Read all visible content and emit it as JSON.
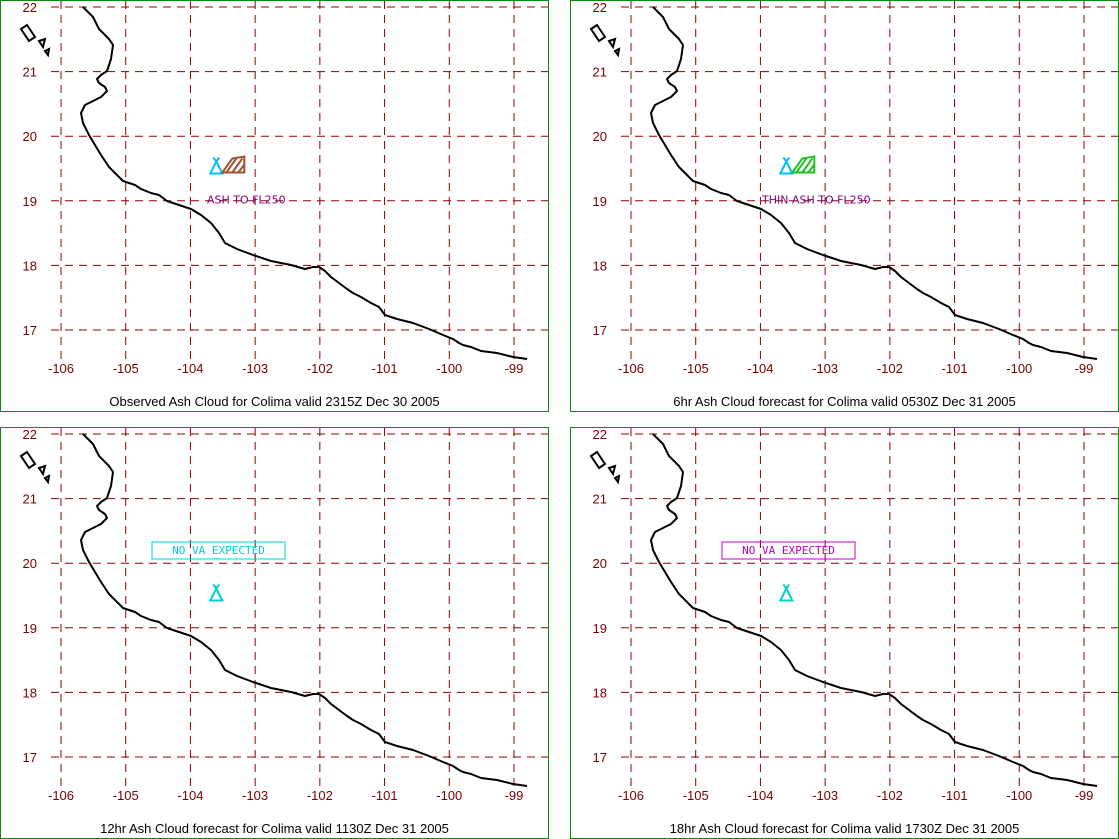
{
  "map": {
    "lon_range": [
      -106,
      -98.7
    ],
    "lat_range": [
      16.5,
      22
    ],
    "lon_ticks": [
      -106,
      -105,
      -104,
      -103,
      -102,
      -101,
      -100,
      -99
    ],
    "lat_ticks": [
      22,
      21,
      20,
      19,
      18,
      17
    ],
    "lon_labels": [
      "-106",
      "-105",
      "-104",
      "-103",
      "-102",
      "-101",
      "-100",
      "-99"
    ],
    "lat_labels": [
      "22",
      "21",
      "20",
      "19",
      "18",
      "17"
    ],
    "volcano": {
      "name": "Colima",
      "lon": -103.6,
      "lat": 19.5
    },
    "colors": {
      "grid": "#8b0000",
      "frame": "#0a8a0a",
      "coast": "#000000"
    }
  },
  "panels": [
    {
      "caption": "Observed Ash Cloud for Colima valid 2315Z Dec 30 2005",
      "ash_label": "ASH TO FL250",
      "ash_color": "#a0522d",
      "volcano_color": "#00bfff",
      "notice": ""
    },
    {
      "caption": "6hr Ash Cloud forecast for Colima valid 0530Z Dec 31 2005",
      "ash_label": "THIN ASH TO FL250",
      "ash_color": "#22c022",
      "volcano_color": "#00bfff",
      "notice": ""
    },
    {
      "caption": "12hr Ash Cloud forecast for Colima valid 1130Z Dec 31 2005",
      "ash_label": "",
      "ash_color": "",
      "volcano_color": "#00d0d0",
      "notice": "NO VA EXPECTED",
      "notice_color": "#00d0d0"
    },
    {
      "caption": "18hr Ash Cloud forecast for Colima valid 1730Z Dec 31 2005",
      "ash_label": "",
      "ash_color": "",
      "volcano_color": "#00d0d0",
      "notice": "NO VA EXPECTED",
      "notice_color": "#c000c0"
    }
  ]
}
